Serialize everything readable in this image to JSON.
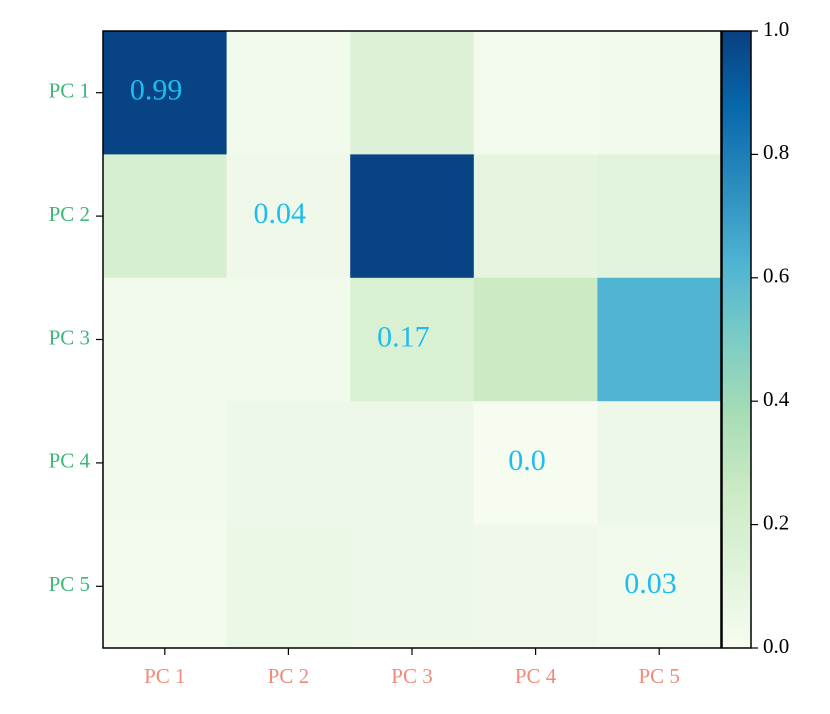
{
  "chart_data": {
    "type": "heatmap",
    "x_categories": [
      "PC 1",
      "PC 2",
      "PC 3",
      "PC 4",
      "PC 5"
    ],
    "y_categories": [
      "PC 1",
      "PC 2",
      "PC 3",
      "PC 4",
      "PC 5"
    ],
    "values": [
      [
        0.99,
        0.03,
        0.15,
        0.02,
        0.03
      ],
      [
        0.18,
        0.04,
        0.99,
        0.1,
        0.12
      ],
      [
        0.03,
        0.03,
        0.17,
        0.25,
        0.62
      ],
      [
        0.03,
        0.05,
        0.05,
        0,
        0.05
      ],
      [
        0.02,
        0.06,
        0.05,
        0.04,
        0.03
      ]
    ],
    "value_labels": [
      [
        "0.99",
        null,
        null,
        null,
        null
      ],
      [
        null,
        "0.04",
        null,
        null,
        null
      ],
      [
        null,
        null,
        "0.17",
        null,
        null
      ],
      [
        null,
        null,
        null,
        "0.0",
        null
      ],
      [
        null,
        null,
        null,
        null,
        "0.03"
      ]
    ],
    "colormap": "GnBu",
    "clim": [
      0,
      1
    ],
    "cticks": [
      {
        "value": 0,
        "label": "0.0"
      },
      0.2,
      0.4,
      0.6,
      0.8,
      {
        "value": 1,
        "label": "1.0"
      }
    ],
    "x_label_color": "#f08a7a",
    "y_label_color": "#3cb878",
    "value_label_color": "#1ebdf0"
  }
}
